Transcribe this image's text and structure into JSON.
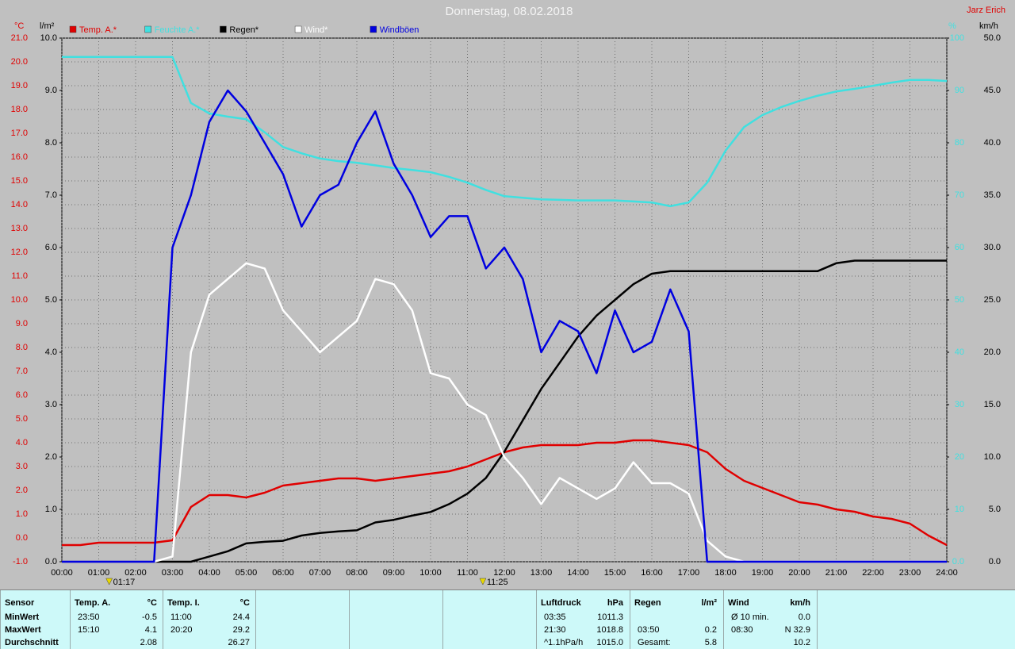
{
  "chart_data": {
    "type": "line",
    "title": "Donnerstag, 08.02.2018",
    "author": "Jarz Erich",
    "ylabel": "°C",
    "y2label": "l/m²",
    "y3label": "%",
    "y4label": "km/h",
    "grid": true,
    "x": [
      0,
      0.5,
      1,
      1.5,
      2,
      2.5,
      3,
      3.5,
      4,
      4.5,
      5,
      5.5,
      6,
      6.5,
      7,
      7.5,
      8,
      8.5,
      9,
      9.5,
      10,
      10.5,
      11,
      11.5,
      12,
      12.5,
      13,
      13.5,
      14,
      14.5,
      15,
      15.5,
      16,
      16.5,
      17,
      17.5,
      18,
      18.5,
      19,
      19.5,
      20,
      20.5,
      21,
      21.5,
      22,
      22.5,
      23,
      23.5,
      24
    ],
    "xlim": [
      0,
      24
    ],
    "xticks": [
      {
        "value": 0,
        "label": "00:00"
      },
      {
        "value": 1,
        "label": "01:00"
      },
      {
        "value": 2,
        "label": "02:00"
      },
      {
        "value": 3,
        "label": "03:00"
      },
      {
        "value": 4,
        "label": "04:00"
      },
      {
        "value": 5,
        "label": "05:00"
      },
      {
        "value": 6,
        "label": "06:00"
      },
      {
        "value": 7,
        "label": "07:00"
      },
      {
        "value": 8,
        "label": "08:00"
      },
      {
        "value": 9,
        "label": "09:00"
      },
      {
        "value": 10,
        "label": "10:00"
      },
      {
        "value": 11,
        "label": "11:00"
      },
      {
        "value": 12,
        "label": "12:00"
      },
      {
        "value": 13,
        "label": "13:00"
      },
      {
        "value": 14,
        "label": "14:00"
      },
      {
        "value": 15,
        "label": "15:00"
      },
      {
        "value": 16,
        "label": "16:00"
      },
      {
        "value": 17,
        "label": "17:00"
      },
      {
        "value": 18,
        "label": "18:00"
      },
      {
        "value": 19,
        "label": "19:00"
      },
      {
        "value": 20,
        "label": "20:00"
      },
      {
        "value": 21,
        "label": "21:00"
      },
      {
        "value": 22,
        "label": "22:00"
      },
      {
        "value": 23,
        "label": "23:00"
      },
      {
        "value": 24,
        "label": "24:00"
      }
    ],
    "ylim": [
      -1,
      21
    ],
    "yticks": [
      {
        "value": -1,
        "label": "-1.0"
      },
      {
        "value": 0,
        "label": "0.0"
      },
      {
        "value": 1,
        "label": "1.0"
      },
      {
        "value": 2,
        "label": "2.0"
      },
      {
        "value": 3,
        "label": "3.0"
      },
      {
        "value": 4,
        "label": "4.0"
      },
      {
        "value": 5,
        "label": "5.0"
      },
      {
        "value": 6,
        "label": "6.0"
      },
      {
        "value": 7,
        "label": "7.0"
      },
      {
        "value": 8,
        "label": "8.0"
      },
      {
        "value": 9,
        "label": "9.0"
      },
      {
        "value": 10,
        "label": "10.0"
      },
      {
        "value": 11,
        "label": "11.0"
      },
      {
        "value": 12,
        "label": "12.0"
      },
      {
        "value": 13,
        "label": "13.0"
      },
      {
        "value": 14,
        "label": "14.0"
      },
      {
        "value": 15,
        "label": "15.0"
      },
      {
        "value": 16,
        "label": "16.0"
      },
      {
        "value": 17,
        "label": "17.0"
      },
      {
        "value": 18,
        "label": "18.0"
      },
      {
        "value": 19,
        "label": "19.0"
      },
      {
        "value": 20,
        "label": "20.0"
      },
      {
        "value": 21,
        "label": "21.0"
      }
    ],
    "y2lim": [
      0,
      10
    ],
    "y2ticks": [
      {
        "value": 0,
        "label": "0.0"
      },
      {
        "value": 1,
        "label": "1.0"
      },
      {
        "value": 2,
        "label": "2.0"
      },
      {
        "value": 3,
        "label": "3.0"
      },
      {
        "value": 4,
        "label": "4.0"
      },
      {
        "value": 5,
        "label": "5.0"
      },
      {
        "value": 6,
        "label": "6.0"
      },
      {
        "value": 7,
        "label": "7.0"
      },
      {
        "value": 8,
        "label": "8.0"
      },
      {
        "value": 9,
        "label": "9.0"
      },
      {
        "value": 10,
        "label": "10.0"
      }
    ],
    "y3lim": [
      0,
      100
    ],
    "y3ticks": [
      {
        "value": 0,
        "label": "0.0"
      },
      10,
      20,
      30,
      40,
      50,
      60,
      70,
      80,
      90,
      100
    ],
    "y4lim": [
      0,
      50
    ],
    "y4ticks": [
      {
        "value": 0,
        "label": "0.0"
      },
      {
        "value": 5,
        "label": "5.0"
      },
      {
        "value": 10,
        "label": "10.0"
      },
      {
        "value": 15,
        "label": "15.0"
      },
      {
        "value": 20,
        "label": "20.0"
      },
      {
        "value": 25,
        "label": "25.0"
      },
      {
        "value": 30,
        "label": "30.0"
      },
      {
        "value": 35,
        "label": "35.0"
      },
      {
        "value": 40,
        "label": "40.0"
      },
      {
        "value": 45,
        "label": "45.0"
      },
      {
        "value": 50,
        "label": "50.0"
      }
    ],
    "series": [
      {
        "name": "Temp. A.*",
        "color": "#e00000",
        "axis": "y",
        "values": [
          -0.3,
          -0.3,
          -0.2,
          -0.2,
          -0.2,
          -0.2,
          -0.1,
          1.3,
          1.8,
          1.8,
          1.7,
          1.9,
          2.2,
          2.3,
          2.4,
          2.5,
          2.5,
          2.4,
          2.5,
          2.6,
          2.7,
          2.8,
          3.0,
          3.3,
          3.6,
          3.8,
          3.9,
          3.9,
          3.9,
          4.0,
          4.0,
          4.1,
          4.1,
          4.0,
          3.9,
          3.6,
          2.9,
          2.4,
          2.1,
          1.8,
          1.5,
          1.4,
          1.2,
          1.1,
          0.9,
          0.8,
          0.6,
          0.1,
          -0.3
        ]
      },
      {
        "name": "Feuchte A.*",
        "color": "#40e0e0",
        "axis": "y3",
        "values": [
          96.4,
          96.4,
          96.4,
          96.4,
          96.4,
          96.4,
          96.4,
          87.6,
          85.6,
          85,
          84.5,
          82,
          79.2,
          78,
          77,
          76.5,
          76.2,
          75.7,
          75.2,
          74.8,
          74.4,
          73.5,
          72.4,
          71,
          69.8,
          69.5,
          69.2,
          69.1,
          69,
          69,
          69,
          68.8,
          68.6,
          67.9,
          68.6,
          72.4,
          78.5,
          83,
          85.3,
          86.8,
          88,
          89,
          89.8,
          90.3,
          90.9,
          91.5,
          92,
          92,
          91.8
        ]
      },
      {
        "name": "Regen*",
        "color": "#000000",
        "axis": "y2",
        "values": [
          0,
          0,
          0,
          0,
          0,
          0,
          0,
          0,
          0.1,
          0.2,
          0.35,
          0.38,
          0.4,
          0.5,
          0.55,
          0.58,
          0.6,
          0.75,
          0.8,
          0.88,
          0.95,
          1.1,
          1.3,
          1.6,
          2.1,
          2.7,
          3.3,
          3.8,
          4.3,
          4.7,
          5.0,
          5.3,
          5.5,
          5.55,
          5.55,
          5.55,
          5.55,
          5.55,
          5.55,
          5.55,
          5.55,
          5.55,
          5.7,
          5.75,
          5.75,
          5.75,
          5.75,
          5.75,
          5.75
        ]
      },
      {
        "name": "Wind*",
        "color": "#ffffff",
        "axis": "y4",
        "values": [
          0,
          0,
          0,
          0,
          0,
          0,
          0.5,
          20,
          25.5,
          27,
          28.5,
          28,
          24,
          22,
          20,
          21.5,
          23,
          27,
          26.5,
          24,
          18,
          17.5,
          15,
          14,
          10,
          8,
          5.5,
          8,
          7,
          6,
          7,
          9.5,
          7.5,
          7.5,
          6.5,
          2,
          0.5,
          0,
          0,
          0,
          0,
          0,
          0,
          0,
          0,
          0,
          0,
          0,
          0
        ]
      },
      {
        "name": "Windböen",
        "color": "#0000e0",
        "axis": "y4",
        "values": [
          0,
          0,
          0,
          0,
          0,
          0,
          30,
          35,
          42,
          45,
          43,
          40,
          37,
          32,
          35,
          36,
          40,
          43,
          38,
          35,
          31,
          33,
          33,
          28,
          30,
          27,
          20,
          23,
          22,
          18,
          24,
          20,
          21,
          26,
          22,
          0,
          0,
          0,
          0,
          0,
          0,
          0,
          0,
          0,
          0,
          0,
          0,
          0,
          0
        ]
      }
    ],
    "annotations": [
      {
        "x": 1.283,
        "label": "01:17"
      },
      {
        "x": 11.417,
        "label": "11:25"
      }
    ]
  },
  "table": {
    "sensor": {
      "header": "Sensor",
      "rows": [
        "MinWert",
        "MaxWert",
        "Durchschnitt"
      ]
    },
    "blocks": [
      {
        "name": "Temp. A.",
        "unit": "°C",
        "min": {
          "time": "23:50",
          "value": "-0.5"
        },
        "max": {
          "time": "15:10",
          "value": "4.1"
        },
        "avg": {
          "value": "2.08"
        }
      },
      {
        "name": "Temp. I.",
        "unit": "°C",
        "min": {
          "time": "11:00",
          "value": "24.4"
        },
        "max": {
          "time": "20:20",
          "value": "29.2"
        },
        "avg": {
          "value": "26.27"
        }
      },
      {
        "name": "Luftdruck",
        "unit": "hPa",
        "min": {
          "time": "03:35",
          "value": "1011.3"
        },
        "max": {
          "time": "21:30",
          "value": "1018.8"
        },
        "avg": {
          "time": "^1.1hPa/h",
          "value": "1015.0"
        }
      },
      {
        "name": "Regen",
        "unit": "l/m²",
        "max": {
          "time": "03:50",
          "value": "0.2"
        },
        "avg": {
          "time": "Gesamt:",
          "value": "5.8"
        }
      },
      {
        "name": "Wind",
        "unit": "km/h",
        "min": {
          "time": "Ø 10 min.",
          "value": "0.0"
        },
        "max": {
          "time": "08:30",
          "value": "N 32.9"
        },
        "avg": {
          "value": "10.2"
        }
      }
    ]
  }
}
